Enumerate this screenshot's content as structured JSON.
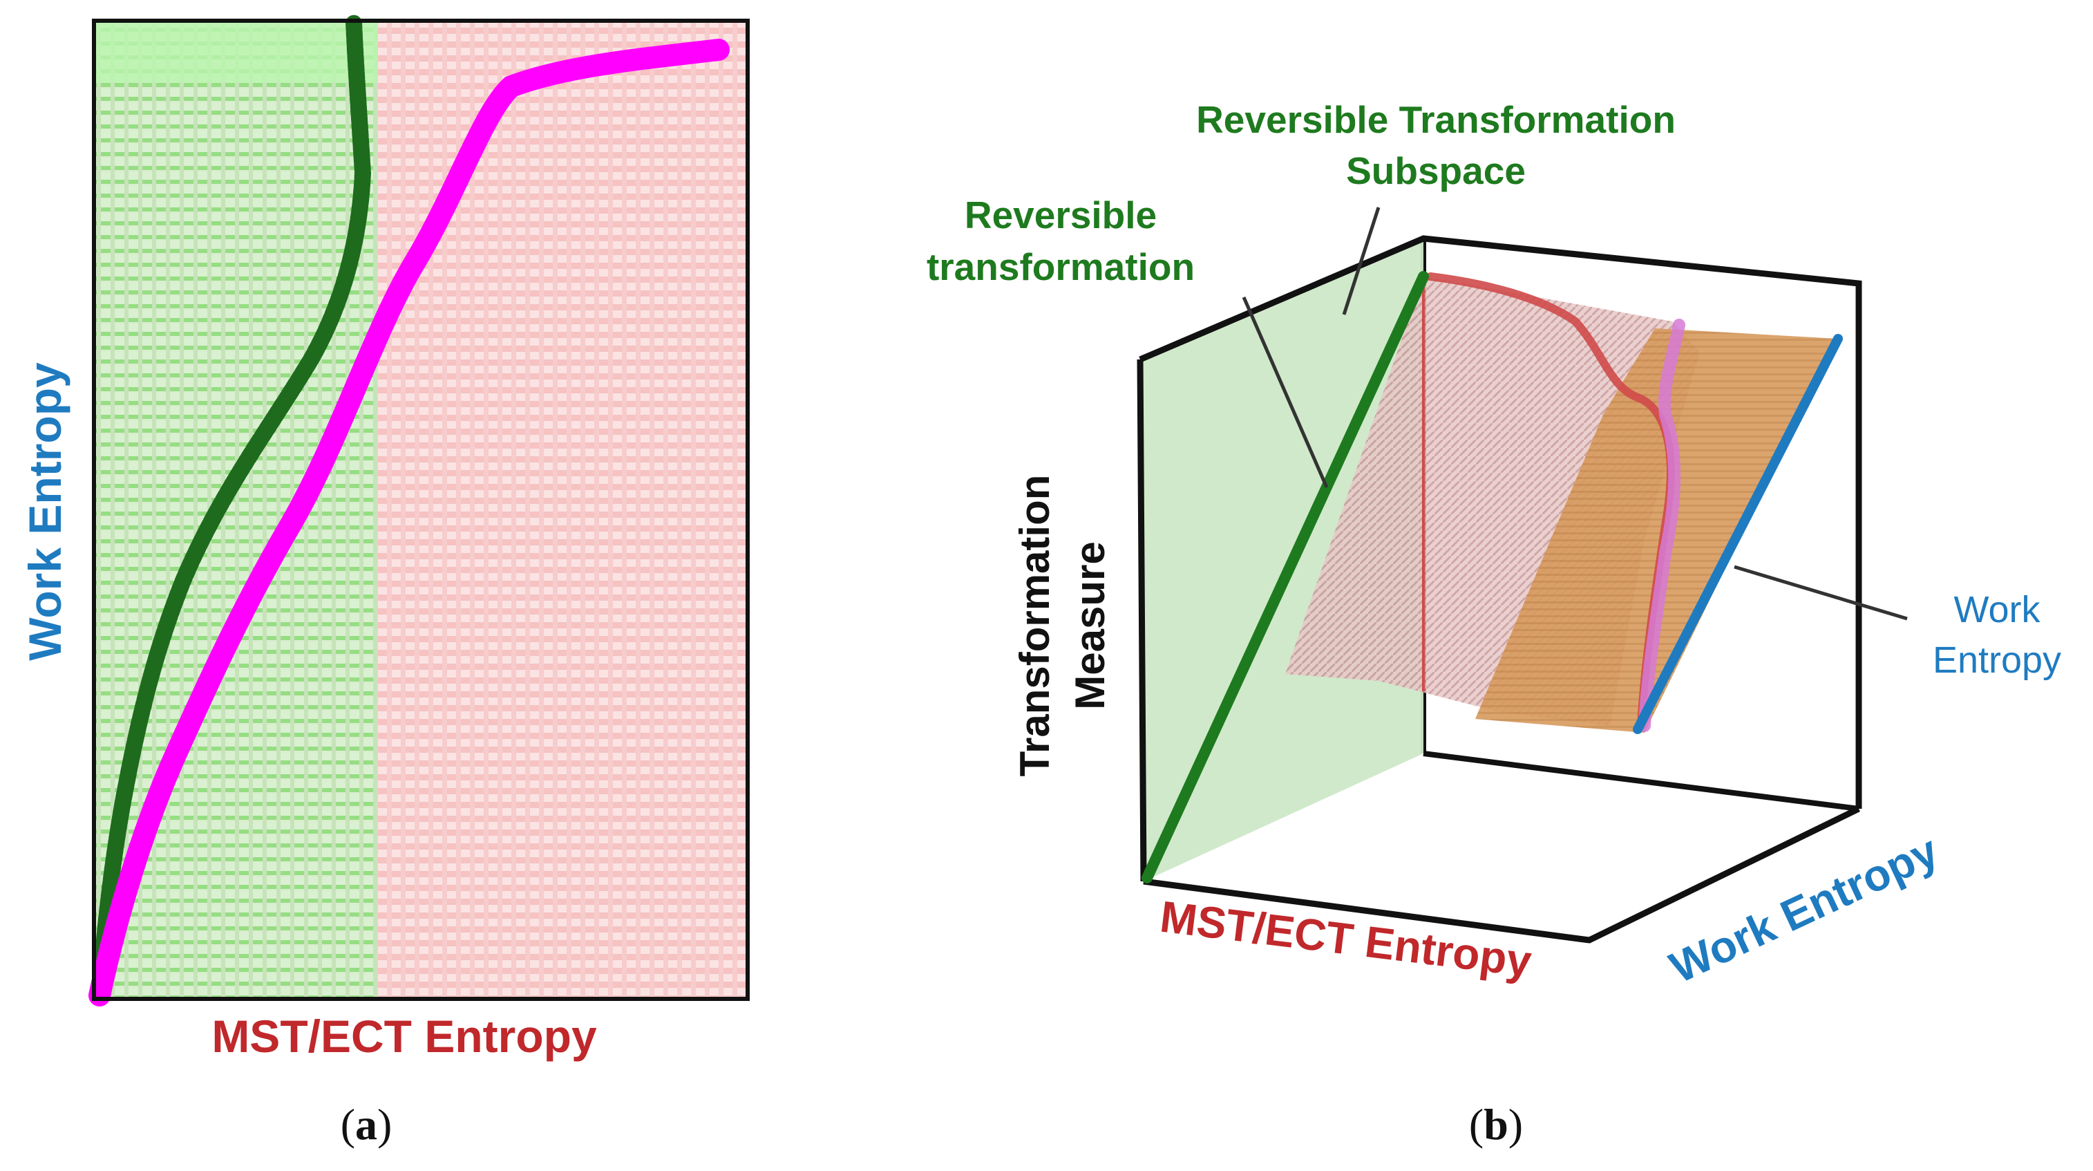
{
  "figure": {
    "panel_a": {
      "y_axis_label": "Work Entropy",
      "x_axis_label": "MST/ECT Entropy",
      "caption_prefix": "(",
      "caption_letter": "a",
      "caption_suffix": ")",
      "colors": {
        "y_axis": "#1f7bc0",
        "x_axis": "#c0282b",
        "green_line": "#1e6b1e",
        "magenta_line": "#ff00ff",
        "green_region": "#b8f0b0",
        "red_region": "#f8c8c8"
      }
    },
    "panel_b": {
      "label_subspace_line1": "Reversible Transformation",
      "label_subspace_line2": "Subspace",
      "label_reversible_line1": "Reversible",
      "label_reversible_line2": "transformation",
      "label_z_line1": "Transformation",
      "label_z_line2": "Measure",
      "label_work_line1": "Work",
      "label_work_line2": "Entropy",
      "x_axis_label": "MST/ECT Entropy",
      "y_axis_label": "Work Entropy",
      "caption_prefix": "(",
      "caption_letter": "b",
      "caption_suffix": ")",
      "colors": {
        "green_text": "#1e7a1e",
        "blue_text": "#1f7bc0",
        "red_text": "#c0282b",
        "green_plane": "#cde8c8",
        "orange_plane": "#d9a060",
        "blue_edge": "#1f7bc0",
        "green_edge": "#1e7a1e"
      }
    }
  }
}
